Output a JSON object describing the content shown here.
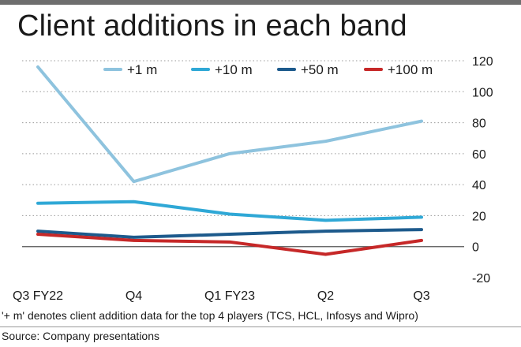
{
  "chart_data": {
    "type": "line",
    "title": "Client additions in each band",
    "categories": [
      "Q3 FY22",
      "Q4",
      "Q1 FY23",
      "Q2",
      "Q3"
    ],
    "series": [
      {
        "name": "+1 m",
        "color": "#8ec3de",
        "values": [
          116,
          42,
          60,
          68,
          81
        ]
      },
      {
        "name": "+10 m",
        "color": "#2fa8d6",
        "values": [
          28,
          29,
          21,
          17,
          19
        ]
      },
      {
        "name": "+50 m",
        "color": "#1d5a8c",
        "values": [
          10,
          6,
          8,
          10,
          11
        ]
      },
      {
        "name": "+100 m",
        "color": "#c62828",
        "values": [
          8,
          4,
          3,
          -5,
          4
        ]
      }
    ],
    "yticks": [
      120,
      100,
      80,
      60,
      40,
      20,
      0,
      -20
    ],
    "ylim": [
      -20,
      120
    ],
    "y_axis_side": "right",
    "grid": "dotted horizontal",
    "legend_position": "top"
  },
  "footer": {
    "note": "'+ m' denotes client addition data for the top 4 players (TCS, HCL, Infosys and Wipro)",
    "source": "Source: Company presentations"
  }
}
